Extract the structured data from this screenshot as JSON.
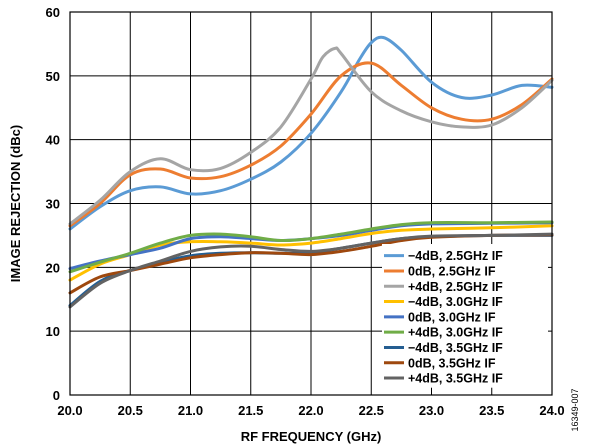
{
  "figure_id": "16349-007",
  "chart_data": {
    "type": "line",
    "title": "",
    "xlabel": "RF FREQUENCY (GHz)",
    "ylabel": "IMAGE REJECTION (dBc)",
    "xlim": [
      20.0,
      24.0
    ],
    "ylim": [
      0,
      60
    ],
    "x_ticks": [
      "20.0",
      "20.5",
      "21.0",
      "21.5",
      "22.0",
      "22.5",
      "23.0",
      "23.5",
      "24.0"
    ],
    "y_ticks": [
      "0",
      "10",
      "20",
      "30",
      "40",
      "50",
      "60"
    ],
    "grid": true,
    "legend_position": "bottom-right",
    "series": [
      {
        "name": "−4dB, 2.5GHz IF",
        "color": "#5b9bd5",
        "x": [
          20.0,
          20.25,
          20.5,
          20.75,
          21.0,
          21.25,
          21.5,
          21.75,
          22.0,
          22.25,
          22.4,
          22.5,
          22.6,
          22.75,
          23.0,
          23.25,
          23.5,
          23.75,
          24.0
        ],
        "y": [
          26.0,
          29.5,
          32.0,
          32.6,
          31.5,
          32.0,
          33.8,
          36.5,
          41.0,
          47.5,
          52.5,
          55.2,
          56.0,
          54.0,
          49.0,
          46.6,
          47.0,
          48.5,
          48.2
        ]
      },
      {
        "name": "0dB, 2.5GHz IF",
        "color": "#ed7d31",
        "x": [
          20.0,
          20.25,
          20.5,
          20.75,
          21.0,
          21.25,
          21.5,
          21.75,
          22.0,
          22.25,
          22.5,
          22.75,
          23.0,
          23.25,
          23.5,
          23.75,
          24.0
        ],
        "y": [
          26.5,
          30.0,
          34.5,
          35.4,
          34.0,
          34.2,
          36.0,
          39.0,
          44.0,
          50.0,
          52.0,
          48.5,
          45.0,
          43.2,
          43.2,
          45.5,
          49.5
        ]
      },
      {
        "name": "+4dB, 2.5GHz IF",
        "color": "#a5a5a5",
        "x": [
          20.0,
          20.25,
          20.5,
          20.75,
          21.0,
          21.25,
          21.5,
          21.75,
          22.0,
          22.1,
          22.2,
          22.25,
          22.5,
          22.75,
          23.0,
          23.25,
          23.5,
          23.75,
          24.0
        ],
        "y": [
          26.8,
          30.5,
          35.0,
          37.0,
          35.3,
          35.5,
          38.0,
          42.0,
          49.5,
          53.0,
          54.3,
          53.5,
          47.5,
          44.5,
          42.8,
          42.0,
          42.3,
          45.0,
          49.3
        ]
      },
      {
        "name": "−4dB, 3.0GHz IF",
        "color": "#ffc000",
        "x": [
          20.0,
          20.25,
          20.5,
          20.75,
          21.0,
          21.25,
          21.5,
          21.75,
          22.0,
          22.25,
          22.5,
          22.75,
          23.0,
          23.5,
          24.0
        ],
        "y": [
          18.0,
          20.5,
          22.0,
          23.5,
          24.0,
          24.0,
          23.8,
          23.5,
          23.8,
          24.5,
          25.3,
          25.8,
          26.0,
          26.2,
          26.5
        ]
      },
      {
        "name": "0dB, 3.0GHz IF",
        "color": "#4472c4",
        "x": [
          20.0,
          20.25,
          20.5,
          20.75,
          21.0,
          21.25,
          21.5,
          21.75,
          22.0,
          22.25,
          22.5,
          22.75,
          23.0,
          23.5,
          24.0
        ],
        "y": [
          19.8,
          21.0,
          22.0,
          23.0,
          24.5,
          24.8,
          24.5,
          24.2,
          24.5,
          25.0,
          25.8,
          26.5,
          26.8,
          26.9,
          27.0
        ]
      },
      {
        "name": "+4dB, 3.0GHz IF",
        "color": "#70ad47",
        "x": [
          20.0,
          20.25,
          20.5,
          20.75,
          21.0,
          21.25,
          21.5,
          21.75,
          22.0,
          22.25,
          22.5,
          22.75,
          23.0,
          23.5,
          24.0
        ],
        "y": [
          19.3,
          20.8,
          22.2,
          23.8,
          25.0,
          25.2,
          24.8,
          24.2,
          24.5,
          25.2,
          26.0,
          26.7,
          27.0,
          27.0,
          27.1
        ]
      },
      {
        "name": "−4dB, 3.5GHz IF",
        "color": "#255e91",
        "x": [
          20.0,
          20.25,
          20.5,
          20.75,
          21.0,
          21.25,
          21.5,
          21.75,
          22.0,
          22.25,
          22.5,
          22.75,
          23.0,
          23.5,
          24.0
        ],
        "y": [
          14.0,
          17.8,
          19.5,
          20.8,
          21.8,
          22.2,
          22.3,
          22.2,
          22.3,
          23.0,
          23.8,
          24.5,
          24.8,
          25.0,
          25.0
        ]
      },
      {
        "name": "0dB, 3.5GHz IF",
        "color": "#9e480e",
        "x": [
          20.0,
          20.25,
          20.5,
          20.75,
          21.0,
          21.25,
          21.5,
          21.75,
          22.0,
          22.25,
          22.5,
          22.75,
          23.0,
          23.5,
          24.0
        ],
        "y": [
          16.0,
          18.5,
          19.5,
          20.5,
          21.5,
          22.0,
          22.3,
          22.2,
          22.0,
          22.5,
          23.3,
          24.2,
          24.7,
          25.0,
          25.1
        ]
      },
      {
        "name": "+4dB, 3.5GHz IF",
        "color": "#636363",
        "x": [
          20.0,
          20.25,
          20.5,
          20.75,
          21.0,
          21.25,
          21.5,
          21.75,
          22.0,
          22.25,
          22.5,
          22.75,
          23.0,
          23.5,
          24.0
        ],
        "y": [
          13.8,
          17.5,
          19.5,
          21.0,
          22.5,
          23.2,
          23.3,
          22.8,
          22.5,
          23.0,
          23.8,
          24.5,
          24.9,
          25.0,
          25.2
        ]
      }
    ]
  }
}
